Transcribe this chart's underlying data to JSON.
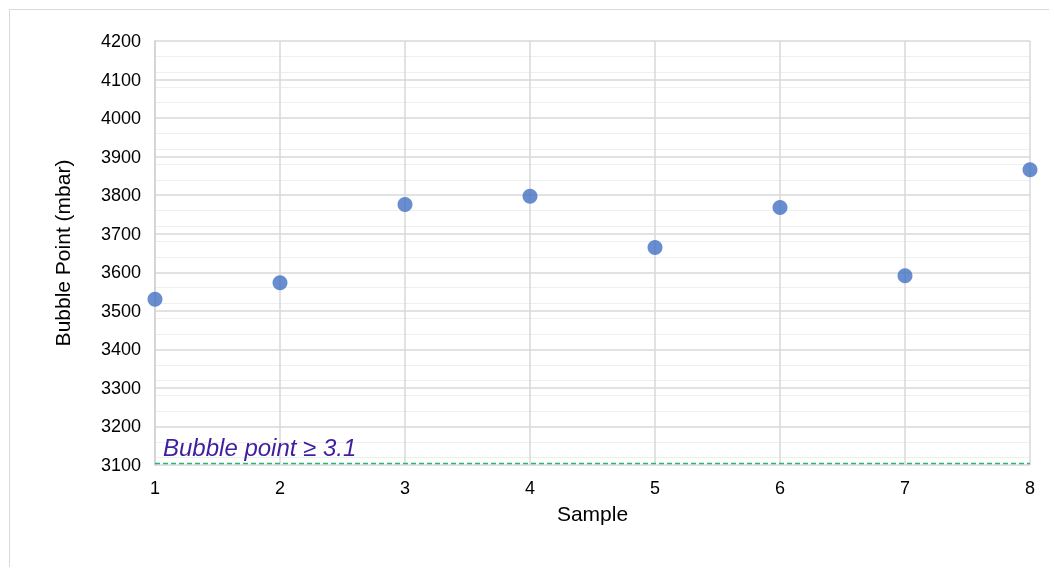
{
  "chart_data": {
    "type": "scatter",
    "xlabel": "Sample",
    "ylabel": "Bubble Point (mbar)",
    "x": [
      1,
      2,
      3,
      4,
      5,
      6,
      7,
      8
    ],
    "series": [
      {
        "color": "#4472c4",
        "values": [
          3530,
          3573,
          3776,
          3797,
          3664,
          3768,
          3591,
          3866
        ]
      }
    ],
    "xlim": [
      1,
      8
    ],
    "xticks": [
      1,
      2,
      3,
      4,
      5,
      6,
      7,
      8
    ],
    "ylim": [
      3100,
      4200
    ],
    "yticks": [
      3100,
      3200,
      3300,
      3400,
      3500,
      3600,
      3700,
      3800,
      3900,
      4000,
      4100,
      4200
    ],
    "ref_lines": [
      {
        "axis": "y",
        "value": 3105,
        "label": "Bubble point ≥ 3.1",
        "color": "#2bb673",
        "line_style": "dashed"
      }
    ],
    "grid": true,
    "marker": "circle"
  }
}
